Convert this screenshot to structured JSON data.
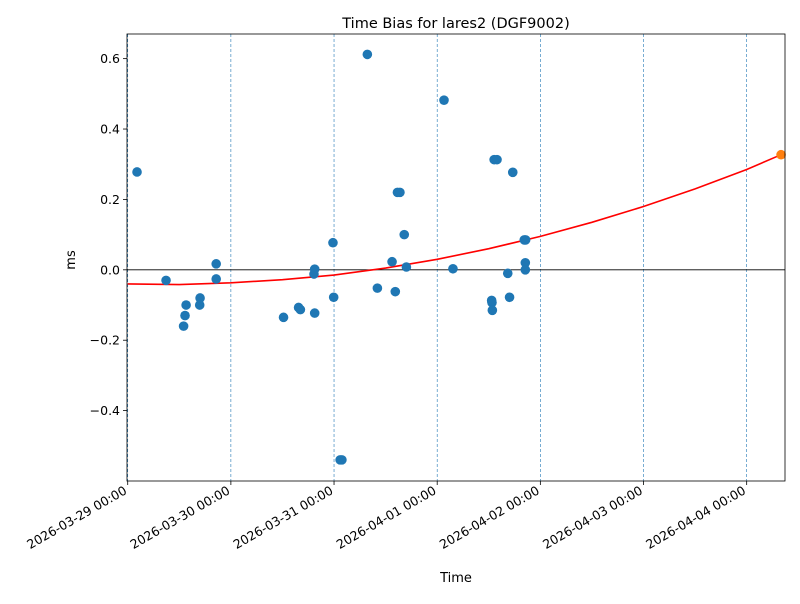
{
  "chart_data": {
    "type": "scatter",
    "title": "Time Bias for lares2 (DGF9002)",
    "xlabel": "Time",
    "ylabel": "ms",
    "x_axis_type": "datetime",
    "xlim": [
      "2026-03-28T23:50",
      "2026-04-04T08:55"
    ],
    "ylim": [
      -0.6,
      0.67
    ],
    "x_ticks": [
      {
        "value": "2026-03-29T00:00",
        "label": "2026-03-29 00:00"
      },
      {
        "value": "2026-03-30T00:00",
        "label": "2026-03-30 00:00"
      },
      {
        "value": "2026-03-31T00:00",
        "label": "2026-03-31 00:00"
      },
      {
        "value": "2026-04-01T00:00",
        "label": "2026-04-01 00:00"
      },
      {
        "value": "2026-04-02T00:00",
        "label": "2026-04-02 00:00"
      },
      {
        "value": "2026-04-03T00:00",
        "label": "2026-04-03 00:00"
      },
      {
        "value": "2026-04-04T00:00",
        "label": "2026-04-04 00:00"
      }
    ],
    "y_ticks": [
      {
        "value": -0.4,
        "label": "−0.4"
      },
      {
        "value": -0.2,
        "label": "−0.2"
      },
      {
        "value": 0.0,
        "label": "0.0"
      },
      {
        "value": 0.2,
        "label": "0.2"
      },
      {
        "value": 0.4,
        "label": "0.4"
      },
      {
        "value": 0.6,
        "label": "0.6"
      }
    ],
    "vertical_gridlines": "dashed at each day",
    "zero_line": true,
    "series": [
      {
        "kind": "scatter",
        "color": "#1f77b4",
        "points": [
          {
            "x": "2026-03-29T02:10",
            "y": 0.278
          },
          {
            "x": "2026-03-29T08:55",
            "y": -0.03
          },
          {
            "x": "2026-03-29T13:00",
            "y": -0.16
          },
          {
            "x": "2026-03-29T13:20",
            "y": -0.13
          },
          {
            "x": "2026-03-29T13:35",
            "y": -0.1
          },
          {
            "x": "2026-03-29T16:50",
            "y": -0.08
          },
          {
            "x": "2026-03-29T16:45",
            "y": -0.1
          },
          {
            "x": "2026-03-29T20:35",
            "y": 0.017
          },
          {
            "x": "2026-03-29T20:35",
            "y": -0.026
          },
          {
            "x": "2026-03-30T12:15",
            "y": -0.135
          },
          {
            "x": "2026-03-30T15:45",
            "y": -0.107
          },
          {
            "x": "2026-03-30T16:10",
            "y": -0.113
          },
          {
            "x": "2026-03-30T19:30",
            "y": 0.002
          },
          {
            "x": "2026-03-30T19:20",
            "y": -0.012
          },
          {
            "x": "2026-03-30T19:30",
            "y": -0.123
          },
          {
            "x": "2026-03-30T23:45",
            "y": 0.077
          },
          {
            "x": "2026-03-30T23:55",
            "y": -0.078
          },
          {
            "x": "2026-03-31T01:25",
            "y": -0.54
          },
          {
            "x": "2026-03-31T01:50",
            "y": -0.54
          },
          {
            "x": "2026-03-31T07:45",
            "y": 0.612
          },
          {
            "x": "2026-03-31T10:05",
            "y": -0.052
          },
          {
            "x": "2026-03-31T13:30",
            "y": 0.023
          },
          {
            "x": "2026-03-31T14:15",
            "y": -0.062
          },
          {
            "x": "2026-03-31T14:45",
            "y": 0.22
          },
          {
            "x": "2026-03-31T15:20",
            "y": 0.22
          },
          {
            "x": "2026-03-31T16:20",
            "y": 0.1
          },
          {
            "x": "2026-03-31T16:50",
            "y": 0.008
          },
          {
            "x": "2026-04-01T01:35",
            "y": 0.482
          },
          {
            "x": "2026-04-01T03:40",
            "y": 0.003
          },
          {
            "x": "2026-04-01T12:40",
            "y": -0.087
          },
          {
            "x": "2026-04-01T12:45",
            "y": -0.093
          },
          {
            "x": "2026-04-01T12:50",
            "y": -0.115
          },
          {
            "x": "2026-04-01T13:15",
            "y": 0.313
          },
          {
            "x": "2026-04-01T13:55",
            "y": 0.313
          },
          {
            "x": "2026-04-01T16:25",
            "y": -0.01
          },
          {
            "x": "2026-04-01T16:50",
            "y": -0.078
          },
          {
            "x": "2026-04-01T17:35",
            "y": 0.277
          },
          {
            "x": "2026-04-01T20:15",
            "y": 0.085
          },
          {
            "x": "2026-04-01T20:35",
            "y": 0.085
          },
          {
            "x": "2026-04-01T20:30",
            "y": 0.02
          },
          {
            "x": "2026-04-01T20:30",
            "y": 0.0
          }
        ]
      },
      {
        "kind": "line",
        "color": "#ff0000",
        "fit": "quadratic",
        "points": [
          {
            "x": "2026-03-29T00:00",
            "y": -0.04
          },
          {
            "x": "2026-03-29T12:00",
            "y": -0.042
          },
          {
            "x": "2026-03-30T00:00",
            "y": -0.037
          },
          {
            "x": "2026-03-30T12:00",
            "y": -0.028
          },
          {
            "x": "2026-03-31T00:00",
            "y": -0.015
          },
          {
            "x": "2026-03-31T12:00",
            "y": 0.005
          },
          {
            "x": "2026-04-01T00:00",
            "y": 0.03
          },
          {
            "x": "2026-04-01T12:00",
            "y": 0.06
          },
          {
            "x": "2026-04-02T00:00",
            "y": 0.095
          },
          {
            "x": "2026-04-02T12:00",
            "y": 0.135
          },
          {
            "x": "2026-04-03T00:00",
            "y": 0.18
          },
          {
            "x": "2026-04-03T12:00",
            "y": 0.23
          },
          {
            "x": "2026-04-04T00:00",
            "y": 0.285
          },
          {
            "x": "2026-04-04T08:00",
            "y": 0.327
          }
        ]
      },
      {
        "kind": "scatter",
        "color": "#ff7f0e",
        "points": [
          {
            "x": "2026-04-04T08:00",
            "y": 0.327
          }
        ]
      }
    ]
  }
}
